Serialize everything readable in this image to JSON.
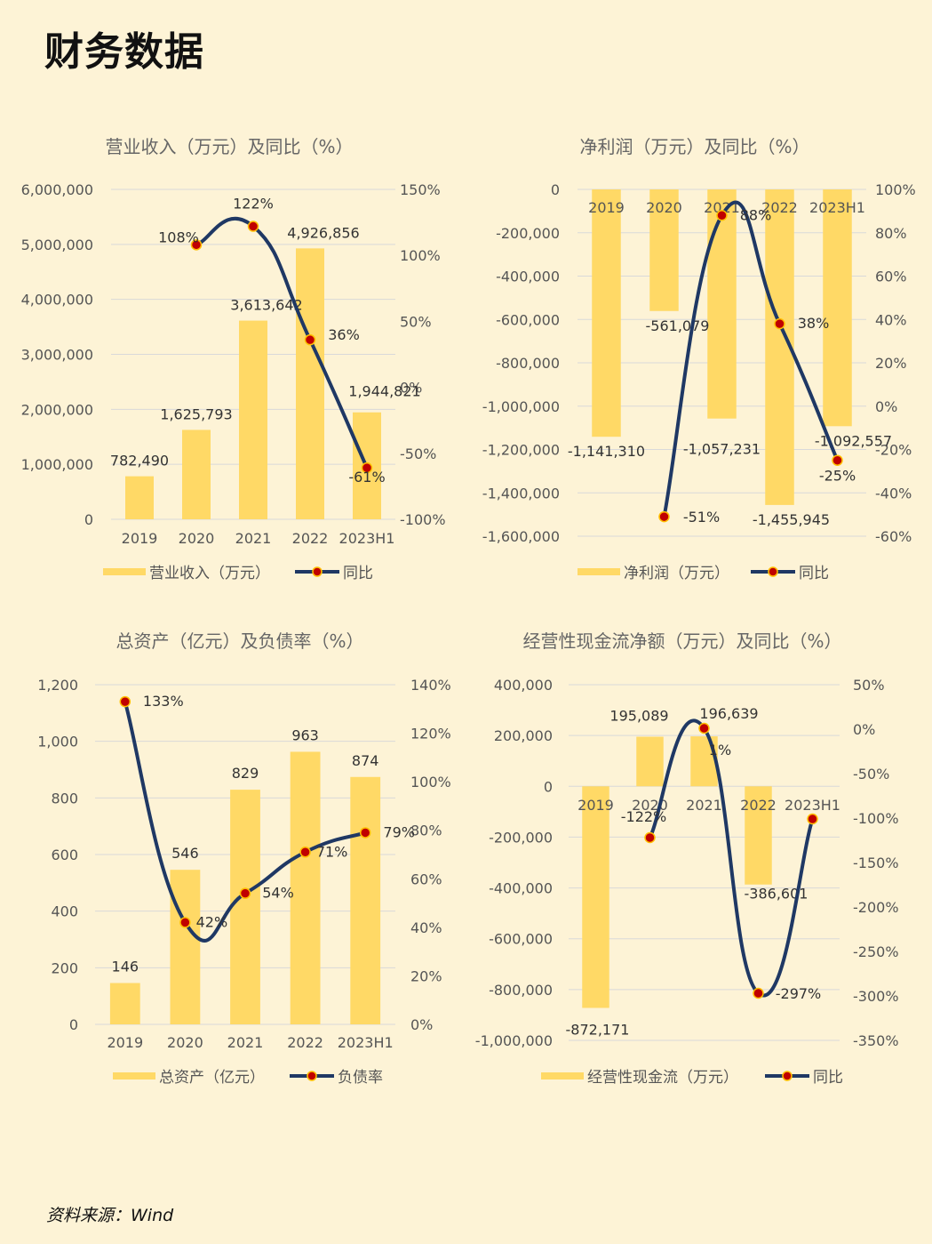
{
  "page": {
    "title": "财务数据",
    "source": "资料来源：Wind"
  },
  "colors": {
    "background": "#fdf3d6",
    "bar": "#ffd966",
    "line": "#1f3864",
    "marker": "#c00000",
    "marker_edge": "#ffc000",
    "grid": "#d9d9d9"
  },
  "chart_data": [
    {
      "type": "bar+line",
      "title": "营业收入（万元）及同比（%）",
      "categories": [
        "2019",
        "2020",
        "2021",
        "2022",
        "2023H1"
      ],
      "series": [
        {
          "name": "营业收入（万元）",
          "kind": "bar",
          "axis": "left",
          "values": [
            782490,
            1625793,
            3613642,
            4926856,
            1944821
          ],
          "labels": [
            "782,490",
            "1,625,793",
            "3,613,642",
            "4,926,856",
            "1,944,821"
          ]
        },
        {
          "name": "同比",
          "kind": "line",
          "axis": "right",
          "values": [
            null,
            108,
            122,
            36,
            -61
          ],
          "labels": [
            "",
            "108%",
            "122%",
            "36%",
            "-61%"
          ]
        }
      ],
      "left_axis": {
        "min": 0,
        "max": 6000000,
        "ticks": [
          "0",
          "1,000,000",
          "2,000,000",
          "3,000,000",
          "4,000,000",
          "5,000,000",
          "6,000,000"
        ]
      },
      "right_axis": {
        "min": -100,
        "max": 150,
        "ticks": [
          "-100%",
          "-50%",
          "0%",
          "50%",
          "100%",
          "150%"
        ]
      },
      "legend": [
        "营业收入（万元）",
        "同比"
      ]
    },
    {
      "type": "bar+line",
      "title": "净利润（万元）及同比（%）",
      "categories": [
        "2019",
        "2020",
        "2021",
        "2022",
        "2023H1"
      ],
      "series": [
        {
          "name": "净利润（万元）",
          "kind": "bar",
          "axis": "left",
          "values": [
            -1141310,
            -561079,
            -1057231,
            -1455945,
            -1092557
          ],
          "labels": [
            "-1,141,310",
            "-561,079",
            "-1,057,231",
            "-1,455,945",
            "-1,092,557"
          ]
        },
        {
          "name": "同比",
          "kind": "line",
          "axis": "right",
          "values": [
            null,
            -51,
            88,
            38,
            -25
          ],
          "labels": [
            "",
            "-51%",
            "88%",
            "38%",
            "-25%"
          ]
        }
      ],
      "left_axis": {
        "min": -1600000,
        "max": 0,
        "ticks": [
          "-1,600,000",
          "-1,400,000",
          "-1,200,000",
          "-1,000,000",
          "-800,000",
          "-600,000",
          "-400,000",
          "-200,000",
          "0"
        ]
      },
      "right_axis": {
        "min": -60,
        "max": 100,
        "ticks": [
          "-60%",
          "-40%",
          "-20%",
          "0%",
          "20%",
          "40%",
          "60%",
          "80%",
          "100%"
        ]
      },
      "legend": [
        "净利润（万元）",
        "同比"
      ]
    },
    {
      "type": "bar+line",
      "title": "总资产（亿元）及负债率（%）",
      "categories": [
        "2019",
        "2020",
        "2021",
        "2022",
        "2023H1"
      ],
      "series": [
        {
          "name": "总资产（亿元）",
          "kind": "bar",
          "axis": "left",
          "values": [
            146,
            546,
            829,
            963,
            874
          ],
          "labels": [
            "146",
            "546",
            "829",
            "963",
            "874"
          ]
        },
        {
          "name": "负债率",
          "kind": "line",
          "axis": "right",
          "values": [
            133,
            42,
            54,
            71,
            79
          ],
          "labels": [
            "133%",
            "42%",
            "54%",
            "71%",
            "79%"
          ]
        }
      ],
      "left_axis": {
        "min": 0,
        "max": 1200,
        "ticks": [
          "0",
          "200",
          "400",
          "600",
          "800",
          "1,000",
          "1,200"
        ]
      },
      "right_axis": {
        "min": 0,
        "max": 140,
        "ticks": [
          "0%",
          "20%",
          "40%",
          "60%",
          "80%",
          "100%",
          "120%",
          "140%"
        ]
      },
      "legend": [
        "总资产（亿元）",
        "负债率"
      ]
    },
    {
      "type": "bar+line",
      "title": "经营性现金流净额（万元）及同比（%）",
      "categories": [
        "2019",
        "2020",
        "2021",
        "2022",
        "2023H1"
      ],
      "series": [
        {
          "name": "经营性现金流（万元）",
          "kind": "bar",
          "axis": "left",
          "values": [
            -872171,
            195089,
            196639,
            -386601,
            null
          ],
          "labels": [
            "-872,171",
            "195,089",
            "196,639",
            "-386,601",
            ""
          ]
        },
        {
          "name": "同比",
          "kind": "line",
          "axis": "right",
          "values": [
            null,
            -122,
            1,
            -297,
            -101
          ],
          "labels": [
            "",
            "-122%",
            "1%",
            "-297%",
            ""
          ]
        }
      ],
      "left_axis": {
        "min": -1000000,
        "max": 400000,
        "ticks": [
          "-1,000,000",
          "-800,000",
          "-600,000",
          "-400,000",
          "-200,000",
          "0",
          "200,000",
          "400,000"
        ]
      },
      "right_axis": {
        "min": -350,
        "max": 50,
        "ticks": [
          "-350%",
          "-300%",
          "-250%",
          "-200%",
          "-150%",
          "-100%",
          "-50%",
          "0%",
          "50%"
        ]
      },
      "legend": [
        "经营性现金流（万元）",
        "同比"
      ]
    }
  ]
}
